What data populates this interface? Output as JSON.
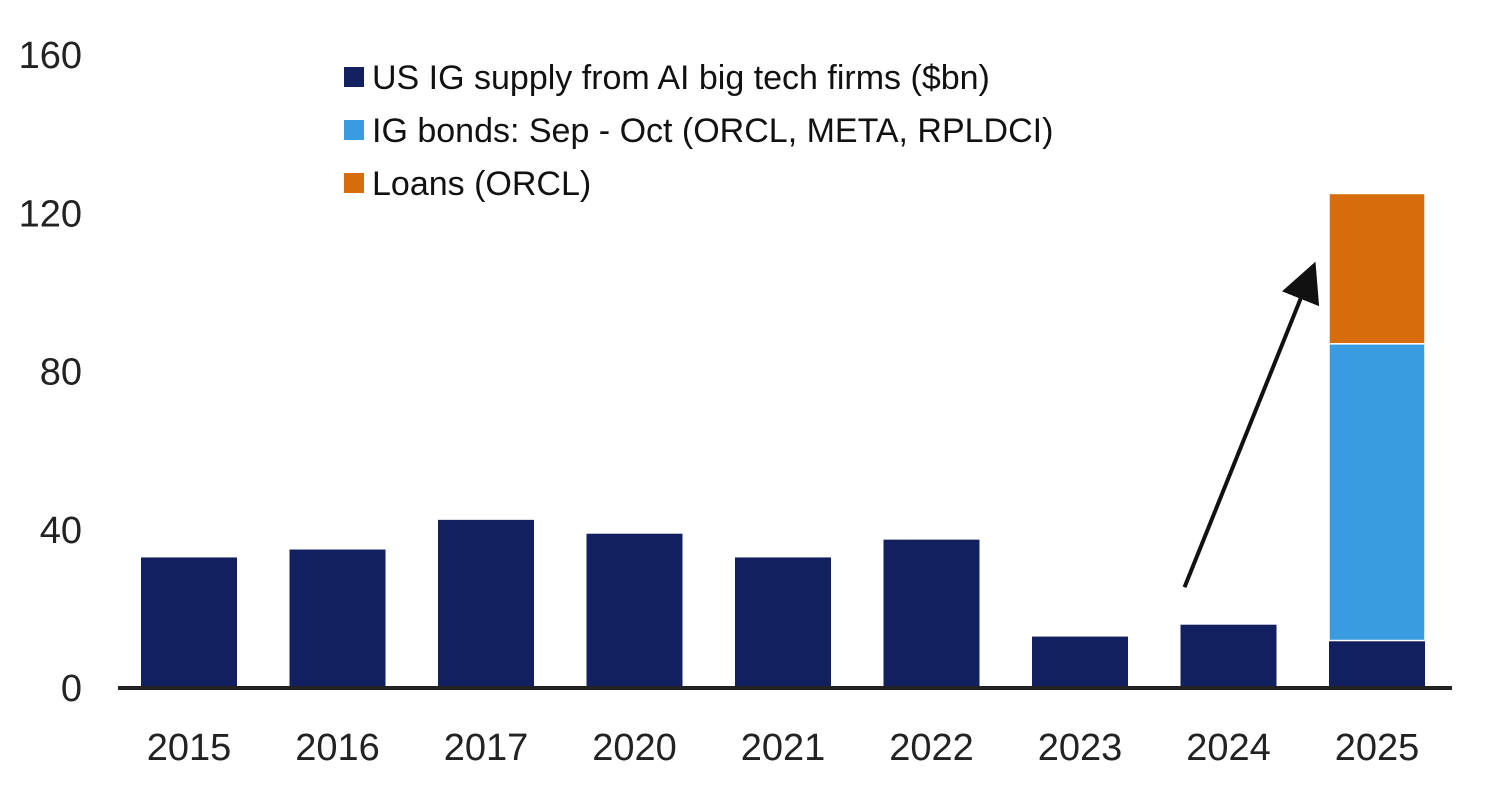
{
  "colors": {
    "navy": "#13205f",
    "blue": "#3a9ce0",
    "orange": "#d66c0b",
    "axis": "#222222",
    "text": "#222222",
    "arrow": "#111111"
  },
  "legend": [
    {
      "label": "US IG supply from AI big tech firms ($bn)",
      "color": "#13205f"
    },
    {
      "label": "IG bonds: Sep - Oct (ORCL, META, RPLDCI)",
      "color": "#3a9ce0"
    },
    {
      "label": "Loans (ORCL)",
      "color": "#d66c0b"
    }
  ],
  "chart_data": {
    "type": "bar",
    "stacked": true,
    "categories": [
      "2015",
      "2016",
      "2017",
      "2020",
      "2021",
      "2022",
      "2023",
      "2024",
      "2025"
    ],
    "series": [
      {
        "name": "US IG supply from AI big tech firms ($bn)",
        "color": "#13205f",
        "values": [
          33,
          35,
          42.5,
          39,
          33,
          37.5,
          13,
          16,
          12
        ]
      },
      {
        "name": "IG bonds: Sep - Oct (ORCL, META, RPLDCI)",
        "color": "#3a9ce0",
        "values": [
          0,
          0,
          0,
          0,
          0,
          0,
          0,
          0,
          75
        ]
      },
      {
        "name": "Loans (ORCL)",
        "color": "#d66c0b",
        "values": [
          0,
          0,
          0,
          0,
          0,
          0,
          0,
          0,
          38
        ]
      }
    ],
    "yticks": [
      0,
      40,
      80,
      120,
      160
    ],
    "ylim": [
      0,
      160
    ],
    "title": "",
    "xlabel": "",
    "ylabel": "",
    "grid": false,
    "legend_position": "top-center",
    "annotation": {
      "type": "arrow",
      "from": {
        "x": "2024",
        "y": 28
      },
      "to": {
        "x": "2025",
        "y": 110
      }
    }
  }
}
